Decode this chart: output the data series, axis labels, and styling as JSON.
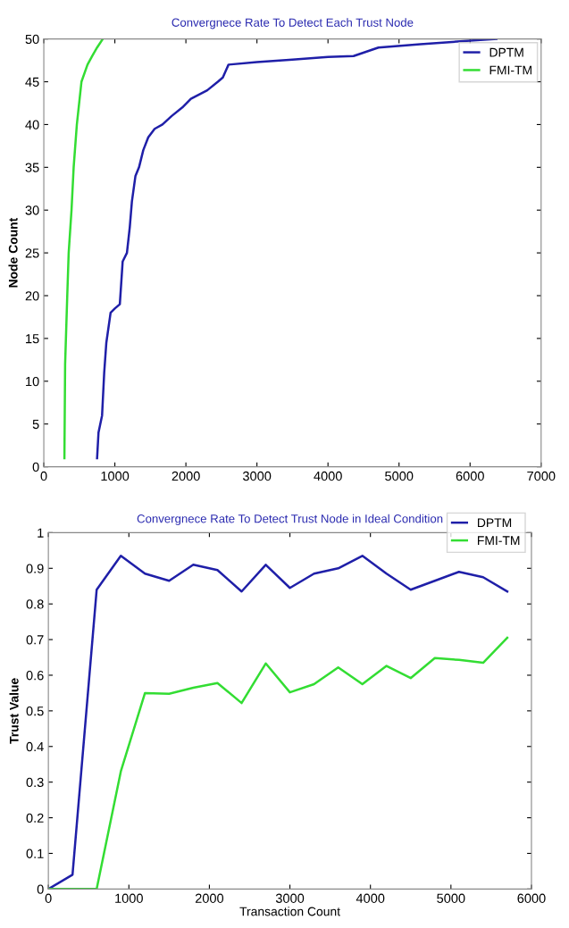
{
  "chart_data": [
    {
      "type": "line",
      "title": "Convergnece Rate To Detect Each Trust Node",
      "ylabel": "Node Count",
      "xlim": [
        0,
        7000
      ],
      "xticks": [
        0,
        1000,
        2000,
        3000,
        4000,
        5000,
        6000,
        7000
      ],
      "ylim": [
        0,
        50
      ],
      "yticks": [
        0,
        5,
        10,
        15,
        20,
        25,
        30,
        35,
        40,
        45,
        50
      ],
      "grid": false,
      "legend": "top right",
      "series": [
        {
          "name": "DPTM",
          "color": "#1f1fa8",
          "x": [
            750,
            770,
            820,
            850,
            880,
            940,
            1000,
            1070,
            1110,
            1170,
            1210,
            1240,
            1290,
            1340,
            1400,
            1470,
            1560,
            1670,
            1800,
            1950,
            2070,
            2300,
            2450,
            2520,
            2600,
            3000,
            3500,
            4000,
            4360,
            4710,
            5300,
            6000,
            6370
          ],
          "values": [
            1,
            4,
            6,
            11,
            14.5,
            18,
            18.5,
            19,
            24,
            25,
            28,
            31,
            34,
            35,
            37,
            38.5,
            39.5,
            40,
            41,
            42,
            43,
            44,
            45,
            45.5,
            47,
            47.3,
            47.6,
            47.9,
            48,
            49,
            49.4,
            49.8,
            50
          ]
        },
        {
          "name": "FMI-TM",
          "color": "#33dd33",
          "x": [
            290,
            300,
            330,
            350,
            390,
            420,
            465,
            530,
            615,
            680,
            750,
            830
          ],
          "values": [
            1,
            12,
            20,
            25,
            30,
            35,
            40,
            45,
            47,
            48,
            49,
            50
          ]
        }
      ]
    },
    {
      "type": "line",
      "title": "Convergnece Rate To Detect Trust Node in Ideal Condition",
      "xlabel": "Transaction Count",
      "ylabel": "Trust Value",
      "xlim": [
        0,
        6000
      ],
      "xticks": [
        0,
        1000,
        2000,
        3000,
        4000,
        5000,
        6000
      ],
      "ylim": [
        0,
        1
      ],
      "yticks": [
        0,
        0.1,
        0.2,
        0.3,
        0.4,
        0.5,
        0.6,
        0.7,
        0.8,
        0.9,
        1
      ],
      "grid": false,
      "legend": "top right",
      "x": [
        0,
        300,
        600,
        900,
        1200,
        1500,
        1800,
        2100,
        2400,
        2700,
        3000,
        3300,
        3600,
        3900,
        4200,
        4500,
        4800,
        5100,
        5400,
        5700
      ],
      "series": [
        {
          "name": "DPTM",
          "color": "#1f1fa8",
          "values": [
            0,
            0.04,
            0.84,
            0.935,
            0.885,
            0.865,
            0.91,
            0.895,
            0.835,
            0.91,
            0.845,
            0.885,
            0.9,
            0.935,
            0.885,
            0.84,
            0.865,
            0.89,
            0.875,
            0.835
          ]
        },
        {
          "name": "FMI-TM",
          "color": "#33dd33",
          "values": [
            0,
            0,
            0,
            0.33,
            0.55,
            0.548,
            0.565,
            0.578,
            0.522,
            0.633,
            0.552,
            0.575,
            0.622,
            0.575,
            0.626,
            0.592,
            0.648,
            0.643,
            0.635,
            0.705
          ]
        }
      ]
    }
  ]
}
